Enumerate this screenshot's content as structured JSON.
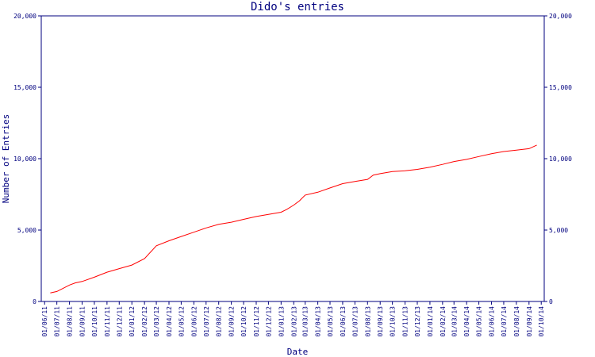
{
  "chart_data": {
    "type": "line",
    "title": "Dido's entries",
    "xlabel": "Date",
    "ylabel": "Number of Entries",
    "ylim": [
      0,
      20000
    ],
    "y_ticks": [
      0,
      5000,
      10000,
      15000,
      20000
    ],
    "y_tick_labels": [
      "0",
      "5,000",
      "10,000",
      "15,000",
      "20,000"
    ],
    "y_axis_mirrored_right": true,
    "grid": false,
    "x_tick_labels": [
      "01/06/11",
      "01/07/11",
      "01/08/11",
      "01/09/11",
      "01/10/11",
      "01/11/11",
      "01/12/11",
      "01/01/12",
      "01/02/12",
      "01/03/12",
      "01/04/12",
      "01/05/12",
      "01/06/12",
      "01/07/12",
      "01/08/12",
      "01/09/12",
      "01/10/12",
      "01/11/12",
      "01/12/12",
      "01/01/13",
      "01/02/13",
      "01/03/13",
      "01/04/13",
      "01/05/13",
      "01/06/13",
      "01/07/13",
      "01/08/13",
      "01/09/13",
      "01/10/13",
      "01/11/13",
      "01/12/13",
      "01/01/14",
      "01/02/14",
      "01/03/14",
      "01/04/14",
      "01/05/14",
      "01/06/14",
      "01/07/14",
      "01/08/14",
      "01/09/14",
      "01/10/14"
    ],
    "series": [
      {
        "x": [
          "2011-06-15",
          "2011-07-01",
          "2011-07-15",
          "2011-08-01",
          "2011-08-15",
          "2011-09-01",
          "2011-10-01",
          "2011-11-01",
          "2011-12-01",
          "2012-01-01",
          "2012-02-01",
          "2012-03-01",
          "2012-04-01",
          "2012-05-01",
          "2012-06-01",
          "2012-07-01",
          "2012-08-01",
          "2012-09-01",
          "2012-10-01",
          "2012-11-01",
          "2012-12-01",
          "2013-01-01",
          "2013-01-15",
          "2013-02-01",
          "2013-02-15",
          "2013-03-01",
          "2013-04-01",
          "2013-05-01",
          "2013-06-01",
          "2013-07-01",
          "2013-08-01",
          "2013-08-15",
          "2013-09-01",
          "2013-10-01",
          "2013-11-01",
          "2013-12-01",
          "2014-01-01",
          "2014-02-01",
          "2014-03-01",
          "2014-04-01",
          "2014-05-01",
          "2014-06-01",
          "2014-07-01",
          "2014-08-01",
          "2014-09-01",
          "2014-09-20"
        ],
        "y": [
          600,
          700,
          900,
          1150,
          1300,
          1400,
          1700,
          2050,
          2300,
          2550,
          3000,
          3900,
          4250,
          4550,
          4850,
          5150,
          5400,
          5550,
          5750,
          5950,
          6100,
          6250,
          6450,
          6750,
          7050,
          7450,
          7650,
          7950,
          8250,
          8400,
          8550,
          8850,
          8950,
          9100,
          9150,
          9250,
          9400,
          9600,
          9800,
          9950,
          10150,
          10350,
          10500,
          10600,
          10700,
          10950
        ],
        "color": "#ff0000"
      }
    ],
    "colors": {
      "axis": "#00007f",
      "line": "#ff0000",
      "background": "#ffffff"
    }
  }
}
